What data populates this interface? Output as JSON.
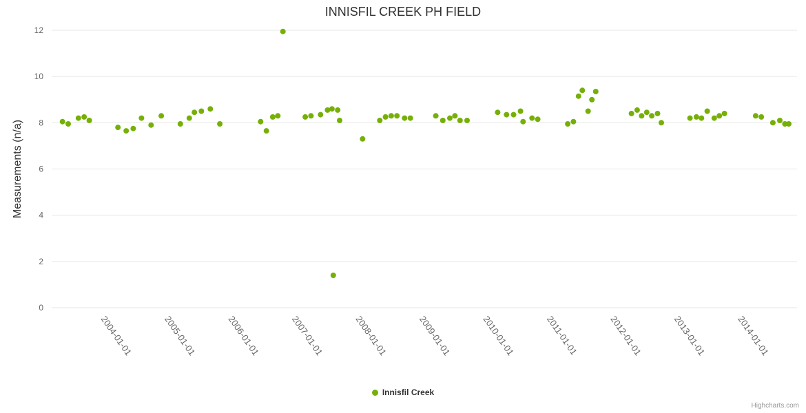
{
  "chart_data": {
    "type": "scatter",
    "title": "INNISFIL CREEK PH FIELD",
    "xlabel": "",
    "ylabel": "Measurements (n/a)",
    "ylim": [
      0,
      12
    ],
    "y_ticks": [
      0,
      2,
      4,
      6,
      8,
      10,
      12
    ],
    "xlim": [
      2003.2,
      2014.9
    ],
    "x_ticks": [
      {
        "value": 2004,
        "label": "2004-01-01"
      },
      {
        "value": 2005,
        "label": "2005-01-01"
      },
      {
        "value": 2006,
        "label": "2006-01-01"
      },
      {
        "value": 2007,
        "label": "2007-01-01"
      },
      {
        "value": 2008,
        "label": "2008-01-01"
      },
      {
        "value": 2009,
        "label": "2009-01-01"
      },
      {
        "value": 2010,
        "label": "2010-01-01"
      },
      {
        "value": 2011,
        "label": "2011-01-01"
      },
      {
        "value": 2012,
        "label": "2012-01-01"
      },
      {
        "value": 2013,
        "label": "2013-01-01"
      },
      {
        "value": 2014,
        "label": "2014-01-01"
      }
    ],
    "grid": "horizontal",
    "legend_position": "bottom-center",
    "series": [
      {
        "name": "Innisfil Creek",
        "color": "#76b007",
        "marker_radius": 4,
        "points": [
          [
            2003.37,
            8.05
          ],
          [
            2003.46,
            7.95
          ],
          [
            2003.62,
            8.2
          ],
          [
            2003.71,
            8.25
          ],
          [
            2003.79,
            8.1
          ],
          [
            2004.24,
            7.8
          ],
          [
            2004.37,
            7.65
          ],
          [
            2004.48,
            7.75
          ],
          [
            2004.61,
            8.2
          ],
          [
            2004.76,
            7.9
          ],
          [
            2004.92,
            8.3
          ],
          [
            2005.22,
            7.95
          ],
          [
            2005.36,
            8.2
          ],
          [
            2005.44,
            8.45
          ],
          [
            2005.55,
            8.5
          ],
          [
            2005.69,
            8.6
          ],
          [
            2005.84,
            7.95
          ],
          [
            2006.48,
            8.05
          ],
          [
            2006.57,
            7.65
          ],
          [
            2006.67,
            8.25
          ],
          [
            2006.75,
            8.3
          ],
          [
            2006.83,
            11.95
          ],
          [
            2007.18,
            8.25
          ],
          [
            2007.27,
            8.3
          ],
          [
            2007.42,
            8.35
          ],
          [
            2007.53,
            8.55
          ],
          [
            2007.6,
            8.6
          ],
          [
            2007.62,
            1.4
          ],
          [
            2007.69,
            8.55
          ],
          [
            2007.72,
            8.1
          ],
          [
            2008.08,
            7.3
          ],
          [
            2008.35,
            8.1
          ],
          [
            2008.44,
            8.25
          ],
          [
            2008.53,
            8.3
          ],
          [
            2008.62,
            8.3
          ],
          [
            2008.74,
            8.2
          ],
          [
            2008.83,
            8.2
          ],
          [
            2009.23,
            8.3
          ],
          [
            2009.34,
            8.1
          ],
          [
            2009.45,
            8.2
          ],
          [
            2009.53,
            8.3
          ],
          [
            2009.61,
            8.1
          ],
          [
            2009.72,
            8.1
          ],
          [
            2010.2,
            8.45
          ],
          [
            2010.34,
            8.35
          ],
          [
            2010.45,
            8.35
          ],
          [
            2010.56,
            8.5
          ],
          [
            2010.6,
            8.05
          ],
          [
            2010.74,
            8.2
          ],
          [
            2010.83,
            8.15
          ],
          [
            2011.3,
            7.95
          ],
          [
            2011.39,
            8.05
          ],
          [
            2011.47,
            9.15
          ],
          [
            2011.53,
            9.4
          ],
          [
            2011.62,
            8.5
          ],
          [
            2011.68,
            9.0
          ],
          [
            2011.74,
            9.35
          ],
          [
            2012.3,
            8.4
          ],
          [
            2012.39,
            8.55
          ],
          [
            2012.46,
            8.3
          ],
          [
            2012.54,
            8.45
          ],
          [
            2012.62,
            8.3
          ],
          [
            2012.71,
            8.4
          ],
          [
            2012.77,
            8.0
          ],
          [
            2013.22,
            8.2
          ],
          [
            2013.32,
            8.25
          ],
          [
            2013.4,
            8.2
          ],
          [
            2013.49,
            8.5
          ],
          [
            2013.6,
            8.2
          ],
          [
            2013.68,
            8.3
          ],
          [
            2013.76,
            8.4
          ],
          [
            2014.25,
            8.3
          ],
          [
            2014.34,
            8.25
          ],
          [
            2014.52,
            8.0
          ],
          [
            2014.63,
            8.1
          ],
          [
            2014.71,
            7.95
          ],
          [
            2014.77,
            7.95
          ]
        ]
      }
    ]
  },
  "legend": {
    "label": "Innisfil Creek"
  },
  "credits": "Highcharts.com",
  "colors": {
    "background": "#ffffff",
    "point": "#76b007",
    "grid": "#e6e6e6",
    "tick_label": "#666666",
    "axis_title": "#333333",
    "title": "#333333",
    "legend_label": "#333333",
    "credits": "#999999"
  }
}
